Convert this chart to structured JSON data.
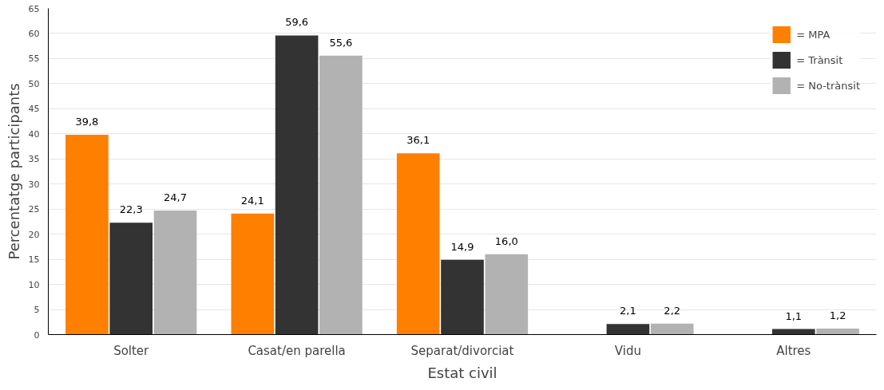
{
  "chart_data": {
    "type": "bar",
    "xlabel": "Estat civil",
    "ylabel": "Percentatge participants",
    "categories": [
      "Solter",
      "Casat/en parella",
      "Separat/divorciat",
      "Vidu",
      "Altres"
    ],
    "series": [
      {
        "name": "= MPA",
        "color": "#ff7f00",
        "values": [
          39.8,
          24.1,
          36.1,
          null,
          null
        ],
        "value_labels": [
          "39,8",
          "24,1",
          "36,1",
          null,
          null
        ]
      },
      {
        "name": "= Trànsit",
        "color": "#333333",
        "values": [
          22.3,
          59.6,
          14.9,
          2.1,
          1.1
        ],
        "value_labels": [
          "22,3",
          "59,6",
          "14,9",
          "2,1",
          "1,1"
        ]
      },
      {
        "name": "= No-trànsit",
        "color": "#b2b2b2",
        "values": [
          24.7,
          55.6,
          16.0,
          2.2,
          1.2
        ],
        "value_labels": [
          "24,7",
          "55,6",
          "16,0",
          "2,2",
          "1,2"
        ]
      }
    ],
    "ylim": [
      0,
      65
    ],
    "yticks": [
      0,
      5,
      10,
      15,
      20,
      25,
      30,
      35,
      40,
      45,
      50,
      55,
      60,
      65
    ],
    "grid": "y",
    "legend": "top right"
  }
}
